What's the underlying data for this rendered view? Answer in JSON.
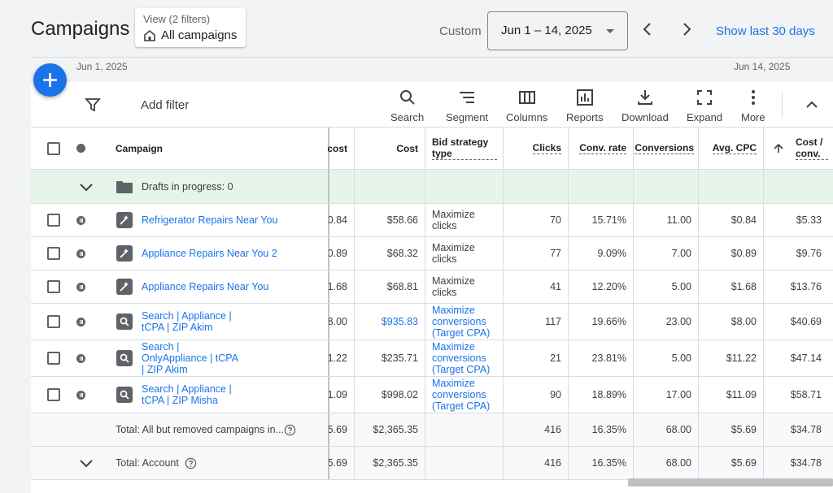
{
  "header": {
    "title": "Campaigns",
    "view_label": "View (2 filters)",
    "view_value": "All campaigns",
    "custom_label": "Custom",
    "date_range": "Jun 1 – 14, 2025",
    "show_last": "Show last 30 days"
  },
  "timeline": {
    "start": "Jun 1, 2025",
    "end": "Jun 14, 2025"
  },
  "toolbar": {
    "add_filter": "Add filter",
    "tools": [
      "Search",
      "Segment",
      "Columns",
      "Reports",
      "Download",
      "Expand",
      "More"
    ]
  },
  "table": {
    "headers": {
      "campaign": "Campaign",
      "cost_partial": "cost",
      "cost": "Cost",
      "bid_strategy": "Bid strategy type",
      "clicks": "Clicks",
      "conv_rate": "Conv. rate",
      "conversions": "Conversions",
      "avg_cpc": "Avg. CPC",
      "cost_conv": "Cost / conv."
    },
    "drafts": "Drafts in progress:  0",
    "rows": [
      {
        "name": "Refrigerator Repairs Near You",
        "partial": "0.84",
        "cost": "$58.66",
        "bid": "Maximize clicks",
        "bid_link": false,
        "clicks": "70",
        "conv_rate": "15.71%",
        "conversions": "11.00",
        "avg_cpc": "$0.84",
        "cost_conv": "$5.33"
      },
      {
        "name": "Appliance Repairs Near You 2",
        "partial": "0.89",
        "cost": "$68.32",
        "bid": "Maximize clicks",
        "bid_link": false,
        "clicks": "77",
        "conv_rate": "9.09%",
        "conversions": "7.00",
        "avg_cpc": "$0.89",
        "cost_conv": "$9.76"
      },
      {
        "name": "Appliance Repairs Near You",
        "partial": "1.68",
        "cost": "$68.81",
        "bid": "Maximize clicks",
        "bid_link": false,
        "clicks": "41",
        "conv_rate": "12.20%",
        "conversions": "5.00",
        "avg_cpc": "$1.68",
        "cost_conv": "$13.76"
      },
      {
        "name": "Search | Appliance | tCPA | ZIP Akim",
        "partial": "8.00",
        "cost": "$935.83",
        "bid": "Maximize conversions (Target CPA)",
        "bid_link": true,
        "cost_link": true,
        "clicks": "117",
        "conv_rate": "19.66%",
        "conversions": "23.00",
        "avg_cpc": "$8.00",
        "cost_conv": "$40.69"
      },
      {
        "name": "Search | OnlyAppliance | tCPA | ZIP Akim",
        "partial": "1.22",
        "cost": "$235.71",
        "bid": "Maximize conversions (Target CPA)",
        "bid_link": true,
        "clicks": "21",
        "conv_rate": "23.81%",
        "conversions": "5.00",
        "avg_cpc": "$11.22",
        "cost_conv": "$47.14"
      },
      {
        "name": "Search | Appliance | tCPA | ZIP Misha",
        "partial": "1.09",
        "cost": "$998.02",
        "bid": "Maximize conversions (Target CPA)",
        "bid_link": true,
        "clicks": "90",
        "conv_rate": "18.89%",
        "conversions": "17.00",
        "avg_cpc": "$11.09",
        "cost_conv": "$58.71"
      }
    ],
    "totals": [
      {
        "label": "Total: All but removed campaigns in...",
        "partial": "5.69",
        "cost": "$2,365.35",
        "clicks": "416",
        "conv_rate": "16.35%",
        "conversions": "68.00",
        "avg_cpc": "$5.69",
        "cost_conv": "$34.78"
      },
      {
        "label": "Total: Account",
        "partial": "5.69",
        "cost": "$2,365.35",
        "clicks": "416",
        "conv_rate": "16.35%",
        "conversions": "68.00",
        "avg_cpc": "$5.69",
        "cost_conv": "$34.78"
      }
    ]
  },
  "colors": {
    "accent": "#1a73e8",
    "drafts_bg": "#e6f4ea"
  }
}
